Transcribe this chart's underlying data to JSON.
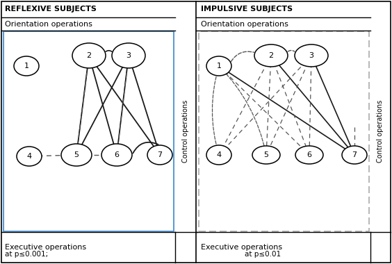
{
  "left_title": "REFLEXIVE SUBJECTS",
  "right_title": "IMPULSIVE SUBJECTS",
  "orient_label": "Orientation operations",
  "exec_label": "Executive operations",
  "control_label": "Control operations",
  "bottom_left": "at p≤0.001;",
  "bottom_right": "at p≤0.01",
  "box_color_left": "#5b9bd5",
  "box_color_right": "#aaaaaa",
  "edge_solid_color": "#1a1a1a",
  "edge_dashed_color": "#555555"
}
